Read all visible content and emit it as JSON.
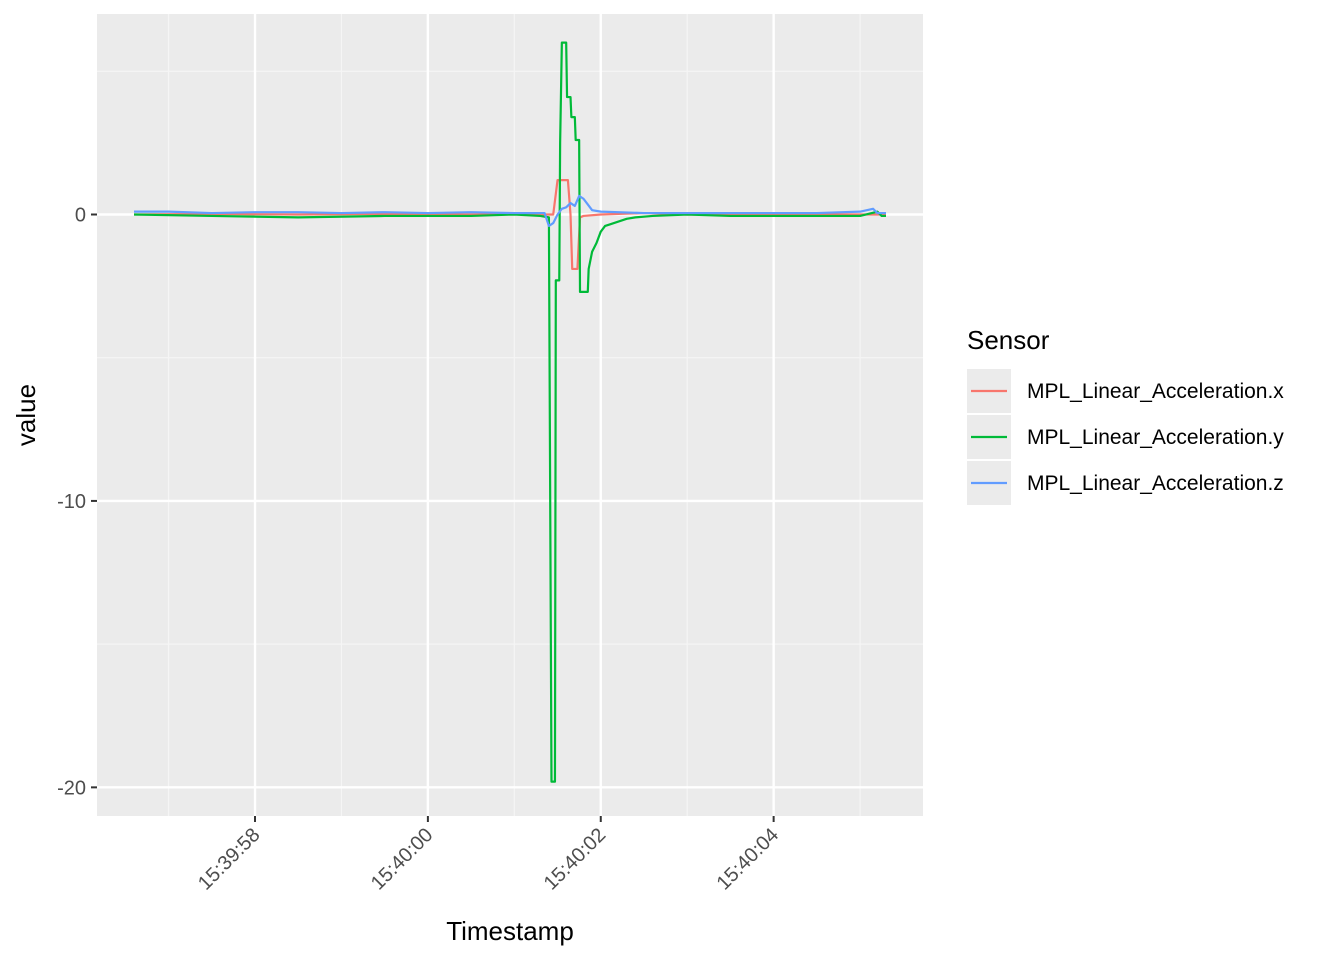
{
  "chart_data": {
    "type": "line",
    "title": "",
    "xlabel": "Timestamp",
    "ylabel": "value",
    "xlim": [
      "15:39:56.6",
      "15:40:05.3"
    ],
    "ylim": [
      -21,
      7
    ],
    "x_ticks": [
      "15:39:58",
      "15:40:00",
      "15:40:02",
      "15:40:04"
    ],
    "y_ticks": [
      -20,
      -10,
      0
    ],
    "grid": true,
    "legend": {
      "title": "Sensor",
      "placement": "right"
    },
    "series": [
      {
        "name": "MPL_Linear_Acceleration.x",
        "color": "#F8766D",
        "points": [
          [
            "15:39:56.6",
            0.0
          ],
          [
            "15:39:57.5",
            0.02
          ],
          [
            "15:39:58.5",
            0.0
          ],
          [
            "15:39:59.5",
            0.02
          ],
          [
            "15:40:00.5",
            0.0
          ],
          [
            "15:40:01.0",
            0.02
          ],
          [
            "15:40:01.3",
            0.0
          ],
          [
            "15:40:01.45",
            0.0
          ],
          [
            "15:40:01.5",
            1.2
          ],
          [
            "15:40:01.57",
            1.2
          ],
          [
            "15:40:01.62",
            1.2
          ],
          [
            "15:40:01.65",
            0.0
          ],
          [
            "15:40:01.67",
            -1.9
          ],
          [
            "15:40:01.7",
            -1.9
          ],
          [
            "15:40:01.73",
            -1.9
          ],
          [
            "15:40:01.76",
            -0.1
          ],
          [
            "15:40:01.8",
            -0.05
          ],
          [
            "15:40:02.0",
            0.0
          ],
          [
            "15:40:02.5",
            0.05
          ],
          [
            "15:40:03.0",
            0.0
          ],
          [
            "15:40:04.0",
            0.02
          ],
          [
            "15:40:05.0",
            0.0
          ],
          [
            "15:40:05.3",
            0.0
          ]
        ]
      },
      {
        "name": "MPL_Linear_Acceleration.y",
        "color": "#00BA38",
        "points": [
          [
            "15:39:56.6",
            0.0
          ],
          [
            "15:39:57.5",
            -0.05
          ],
          [
            "15:39:58.5",
            -0.1
          ],
          [
            "15:39:59.5",
            -0.05
          ],
          [
            "15:40:00.5",
            -0.05
          ],
          [
            "15:40:01.0",
            0.0
          ],
          [
            "15:40:01.3",
            -0.05
          ],
          [
            "15:40:01.4",
            -0.1
          ],
          [
            "15:40:01.43",
            -19.8
          ],
          [
            "15:40:01.47",
            -19.8
          ],
          [
            "15:40:01.48",
            -2.3
          ],
          [
            "15:40:01.52",
            -2.3
          ],
          [
            "15:40:01.53",
            2.5
          ],
          [
            "15:40:01.55",
            6.0
          ],
          [
            "15:40:01.6",
            6.0
          ],
          [
            "15:40:01.61",
            4.1
          ],
          [
            "15:40:01.65",
            4.1
          ],
          [
            "15:40:01.66",
            3.4
          ],
          [
            "15:40:01.7",
            3.4
          ],
          [
            "15:40:01.71",
            2.6
          ],
          [
            "15:40:01.75",
            2.6
          ],
          [
            "15:40:01.76",
            -2.7
          ],
          [
            "15:40:01.85",
            -2.7
          ],
          [
            "15:40:01.86",
            -1.9
          ],
          [
            "15:40:01.9",
            -1.3
          ],
          [
            "15:40:01.95",
            -1.0
          ],
          [
            "15:40:02.0",
            -0.6
          ],
          [
            "15:40:02.05",
            -0.4
          ],
          [
            "15:40:02.1",
            -0.35
          ],
          [
            "15:40:02.2",
            -0.25
          ],
          [
            "15:40:02.3",
            -0.15
          ],
          [
            "15:40:02.4",
            -0.1
          ],
          [
            "15:40:02.6",
            -0.05
          ],
          [
            "15:40:03.0",
            0.0
          ],
          [
            "15:40:03.5",
            -0.05
          ],
          [
            "15:40:04.0",
            -0.05
          ],
          [
            "15:40:04.5",
            -0.05
          ],
          [
            "15:40:05.0",
            -0.05
          ],
          [
            "15:40:05.2",
            0.1
          ],
          [
            "15:40:05.25",
            -0.05
          ],
          [
            "15:40:05.3",
            -0.05
          ]
        ]
      },
      {
        "name": "MPL_Linear_Acceleration.z",
        "color": "#619CFF",
        "points": [
          [
            "15:39:56.6",
            0.1
          ],
          [
            "15:39:57.0",
            0.1
          ],
          [
            "15:39:57.5",
            0.05
          ],
          [
            "15:39:58.0",
            0.08
          ],
          [
            "15:39:58.5",
            0.08
          ],
          [
            "15:39:59.0",
            0.05
          ],
          [
            "15:39:59.5",
            0.08
          ],
          [
            "15:40:00.0",
            0.05
          ],
          [
            "15:40:00.5",
            0.08
          ],
          [
            "15:40:01.0",
            0.05
          ],
          [
            "15:40:01.35",
            0.05
          ],
          [
            "15:40:01.4",
            -0.4
          ],
          [
            "15:40:01.45",
            -0.3
          ],
          [
            "15:40:01.5",
            0.0
          ],
          [
            "15:40:01.55",
            0.2
          ],
          [
            "15:40:01.6",
            0.25
          ],
          [
            "15:40:01.65",
            0.4
          ],
          [
            "15:40:01.7",
            0.3
          ],
          [
            "15:40:01.75",
            0.65
          ],
          [
            "15:40:01.8",
            0.55
          ],
          [
            "15:40:01.85",
            0.35
          ],
          [
            "15:40:01.9",
            0.15
          ],
          [
            "15:40:02.0",
            0.1
          ],
          [
            "15:40:02.5",
            0.05
          ],
          [
            "15:40:03.0",
            0.05
          ],
          [
            "15:40:03.5",
            0.05
          ],
          [
            "15:40:04.0",
            0.05
          ],
          [
            "15:40:04.5",
            0.05
          ],
          [
            "15:40:05.0",
            0.1
          ],
          [
            "15:40:05.15",
            0.2
          ],
          [
            "15:40:05.2",
            0.05
          ],
          [
            "15:40:05.3",
            0.05
          ]
        ]
      }
    ]
  }
}
